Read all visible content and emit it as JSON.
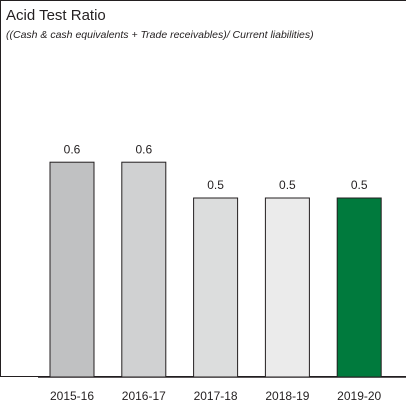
{
  "chart_data": {
    "type": "bar",
    "title": "Acid Test Ratio",
    "subtitle": "((Cash & cash equivalents + Trade receivables)/ Current liabilities)",
    "categories": [
      "2015-16",
      "2016-17",
      "2017-18",
      "2018-19",
      "2019-20"
    ],
    "values": [
      0.6,
      0.6,
      0.5,
      0.5,
      0.5
    ],
    "colors": [
      "#c0c1c2",
      "#d0d1d2",
      "#dcdddd",
      "#ebebeb",
      "#007a3d"
    ]
  }
}
